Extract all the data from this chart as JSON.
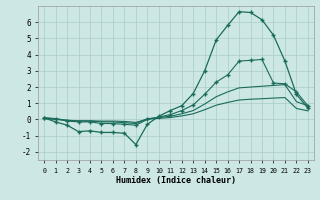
{
  "xlabel": "Humidex (Indice chaleur)",
  "background_color": "#cde8e4",
  "grid_color": "#aaccc8",
  "line_color": "#1a6b5a",
  "x_values": [
    0,
    1,
    2,
    3,
    4,
    5,
    6,
    7,
    8,
    9,
    10,
    11,
    12,
    13,
    14,
    15,
    16,
    17,
    18,
    19,
    20,
    21,
    22,
    23
  ],
  "line_main": [
    0.1,
    -0.15,
    -0.35,
    -0.75,
    -0.7,
    -0.8,
    -0.8,
    -0.85,
    -1.55,
    -0.3,
    0.2,
    0.55,
    0.85,
    1.6,
    3.0,
    4.9,
    5.8,
    6.65,
    6.6,
    6.15,
    5.2,
    3.6,
    1.55,
    0.7
  ],
  "line_upper": [
    0.1,
    0.05,
    -0.1,
    -0.15,
    -0.15,
    -0.25,
    -0.25,
    -0.3,
    -0.35,
    0.0,
    0.15,
    0.3,
    0.55,
    0.9,
    1.55,
    2.3,
    2.75,
    3.6,
    3.65,
    3.7,
    2.25,
    2.2,
    1.7,
    0.85
  ],
  "line_mid": [
    0.1,
    0.05,
    -0.05,
    -0.1,
    -0.1,
    -0.15,
    -0.15,
    -0.2,
    -0.25,
    0.05,
    0.12,
    0.2,
    0.35,
    0.55,
    0.95,
    1.4,
    1.7,
    1.95,
    2.0,
    2.05,
    2.1,
    2.15,
    1.1,
    0.85
  ],
  "line_lower": [
    0.05,
    0.0,
    -0.05,
    -0.08,
    -0.08,
    -0.1,
    -0.1,
    -0.12,
    -0.18,
    0.02,
    0.07,
    0.12,
    0.22,
    0.35,
    0.6,
    0.88,
    1.05,
    1.2,
    1.25,
    1.28,
    1.32,
    1.35,
    0.68,
    0.53
  ],
  "ylim": [
    -2.5,
    7.0
  ],
  "xlim": [
    -0.5,
    23.5
  ],
  "yticks": [
    -2,
    -1,
    0,
    1,
    2,
    3,
    4,
    5,
    6
  ]
}
